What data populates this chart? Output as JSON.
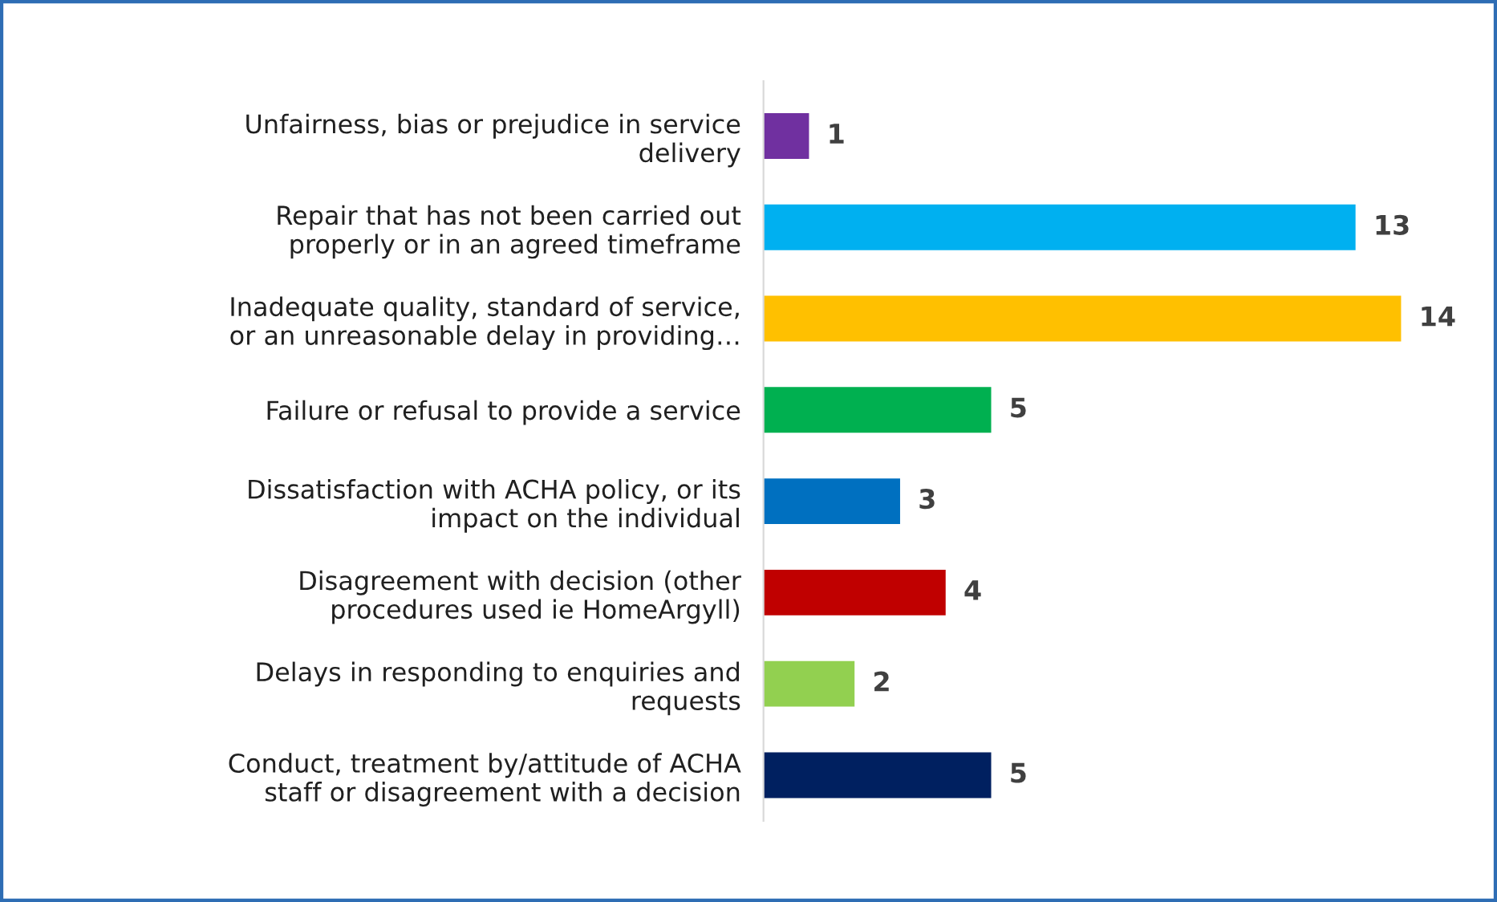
{
  "chart_data": {
    "type": "bar",
    "orientation": "horizontal",
    "data_labels": true,
    "tick_labels": "y",
    "grid": false,
    "legend": false,
    "categories": [
      "Unfairness, bias or prejudice in service\ndelivery",
      "Repair that has not been carried out\nproperly or in an agreed timeframe",
      "Inadequate quality, standard of service,\nor an unreasonable delay in providing…",
      "Failure or refusal to provide a service",
      "Dissatisfaction with ACHA policy, or its\nimpact on the individual",
      "Disagreement with decision (other\nprocedures used ie HomeArgyll)",
      "Delays in responding to enquiries and\nrequests",
      "Conduct, treatment by/attitude of ACHA\nstaff or disagreement with a decision"
    ],
    "values": [
      1,
      13,
      14,
      5,
      3,
      4,
      2,
      5
    ],
    "colors": [
      "#7030a0",
      "#00b0f0",
      "#ffc000",
      "#00b050",
      "#0070c0",
      "#c00000",
      "#92d050",
      "#002060"
    ]
  }
}
